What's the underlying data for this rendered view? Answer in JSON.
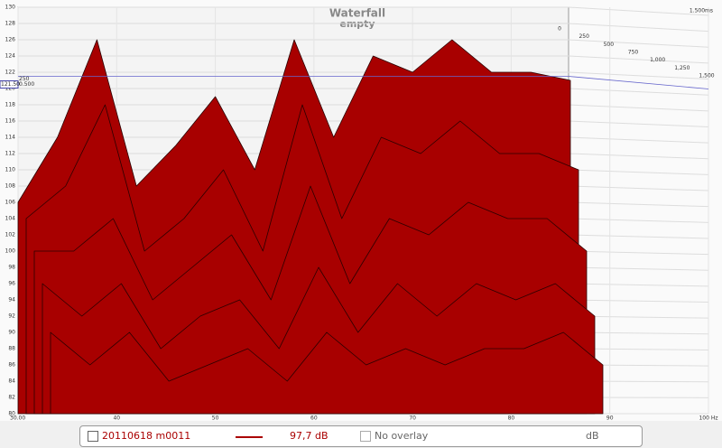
{
  "chart_data": {
    "type": "waterfall",
    "title": "Waterfall",
    "subtitle": "empty",
    "x": [
      30,
      34,
      38,
      42,
      46,
      50,
      54,
      58,
      62,
      66,
      70,
      74,
      78,
      82,
      86
    ],
    "series": [
      {
        "color": "#a80000",
        "values": [
          106,
          114,
          126,
          108,
          113,
          119,
          110,
          126,
          114,
          124,
          122,
          126,
          122,
          122,
          121
        ]
      },
      {
        "color": "#a80000",
        "values": [
          104,
          108,
          118,
          100,
          104,
          110,
          100,
          118,
          104,
          114,
          112,
          116,
          112,
          112,
          110
        ]
      },
      {
        "color": "#a80000",
        "values": [
          100,
          100,
          104,
          94,
          98,
          102,
          94,
          108,
          96,
          104,
          102,
          106,
          104,
          104,
          100
        ]
      },
      {
        "color": "#a80000",
        "values": [
          96,
          92,
          96,
          88,
          92,
          94,
          88,
          98,
          90,
          96,
          92,
          96,
          94,
          96,
          92
        ]
      },
      {
        "color": "#a80000",
        "values": [
          90,
          86,
          90,
          84,
          86,
          88,
          84,
          90,
          86,
          88,
          86,
          88,
          88,
          90,
          86
        ]
      }
    ],
    "xlim": [
      30,
      100
    ],
    "xticks": [
      {
        "value": 30,
        "label": "30.00"
      },
      40,
      50,
      60,
      70,
      80,
      90,
      {
        "value": 100,
        "label": "100 Hz"
      }
    ],
    "ylim": [
      80,
      130
    ],
    "yticks": [
      80,
      82,
      84,
      86,
      88,
      90,
      92,
      94,
      96,
      98,
      100,
      102,
      104,
      106,
      108,
      110,
      112,
      114,
      116,
      118,
      120,
      122,
      124,
      126,
      128,
      130
    ],
    "zlim": [
      0,
      1500
    ],
    "zticks": [
      0,
      250,
      500,
      750,
      {
        "value": 1000,
        "label": "1,000"
      },
      {
        "value": 1250,
        "label": "1,250"
      },
      {
        "value": 1500,
        "label": "1,500"
      }
    ],
    "z_end_label": "1.500ms",
    "cursor": {
      "y_label": "121.50",
      "z_label": "0.500",
      "left_z_label": "250"
    },
    "grid": true
  },
  "footer": {
    "measurement": "20110618 m0011",
    "level": "97,7 dB",
    "overlay": "No overlay",
    "unit": "dB"
  }
}
